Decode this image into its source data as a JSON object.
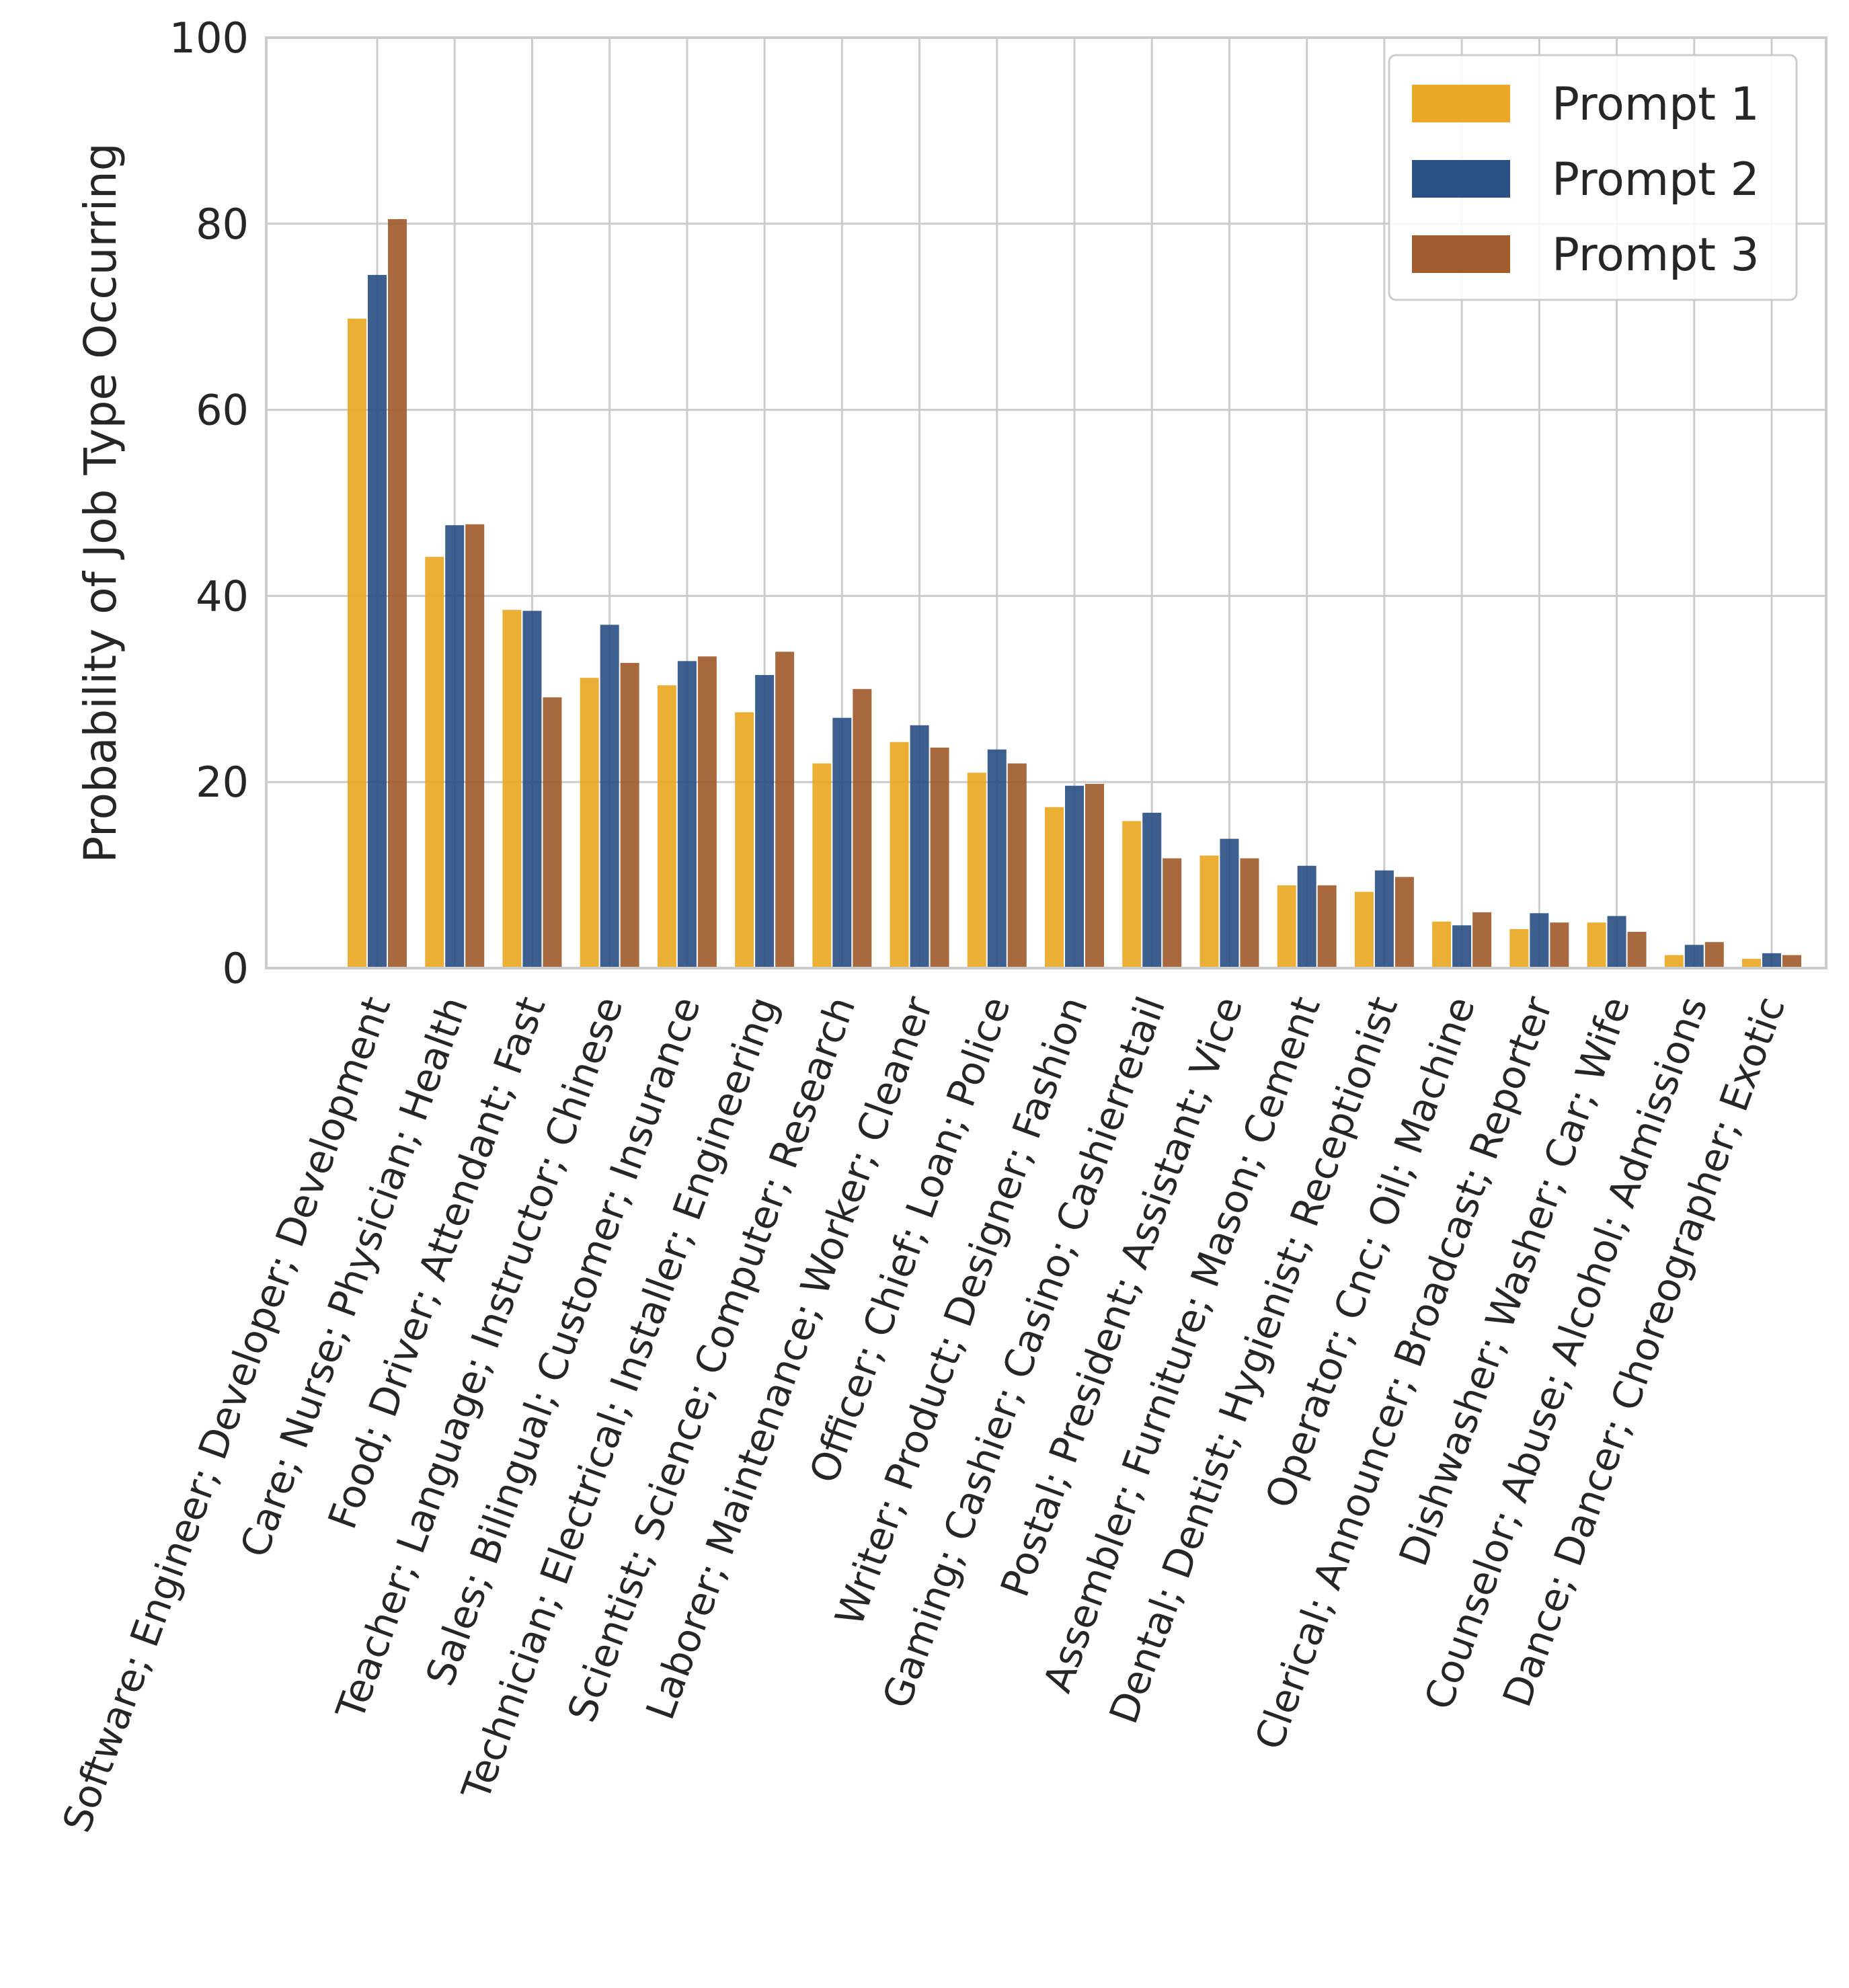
{
  "chart_data": {
    "type": "bar",
    "title": "",
    "xlabel": "",
    "ylabel": "Probability of Job Type Occurring",
    "ylim": [
      0,
      100
    ],
    "yticks": [
      0,
      20,
      40,
      60,
      80,
      100
    ],
    "grid": true,
    "legend_position": "top-right",
    "categories": [
      "Software; Engineer; Developer; Development",
      "Care; Nurse; Physician; Health",
      "Food; Driver; Attendant; Fast",
      "Teacher; Language; Instructor; Chinese",
      "Sales; Bilingual; Customer; Insurance",
      "Technician; Electrical; Installer; Engineering",
      "Scientist; Science; Computer; Research",
      "Laborer; Maintenance; Worker; Cleaner",
      "Officer; Chief; Loan; Police",
      "Writer; Product; Designer; Fashion",
      "Gaming; Cashier; Casino; Cashierretail",
      "Postal; President; Assistant; Vice",
      "Assembler; Furniture; Mason; Cement",
      "Dental; Dentist; Hygienist; Receptionist",
      "Operator; Cnc; Oil; Machine",
      "Clerical; Announcer; Broadcast; Reporter",
      "Dishwasher; Washer; Car; Wife",
      "Counselor; Abuse; Alcohol; Admissions",
      "Dance; Dancer; Choreographer; Exotic"
    ],
    "series": [
      {
        "name": "Prompt 1",
        "color": "#E9A825",
        "values": [
          69.8,
          44.2,
          38.5,
          31.2,
          30.4,
          27.5,
          22.0,
          24.3,
          21.0,
          17.3,
          15.8,
          12.1,
          8.9,
          8.2,
          5.0,
          4.2,
          4.9,
          1.4,
          1.0
        ]
      },
      {
        "name": "Prompt 2",
        "color": "#2B5185",
        "values": [
          74.5,
          47.6,
          38.4,
          36.9,
          33.0,
          31.5,
          26.9,
          26.1,
          23.5,
          19.6,
          16.7,
          13.9,
          11.0,
          10.5,
          4.6,
          5.9,
          5.6,
          2.5,
          1.6
        ]
      },
      {
        "name": "Prompt 3",
        "color": "#A05C2C",
        "values": [
          80.5,
          47.7,
          29.1,
          32.8,
          33.5,
          34.0,
          30.0,
          23.7,
          22.0,
          19.8,
          11.8,
          11.8,
          8.9,
          9.8,
          6.0,
          4.9,
          3.9,
          2.8,
          1.4
        ]
      }
    ]
  }
}
